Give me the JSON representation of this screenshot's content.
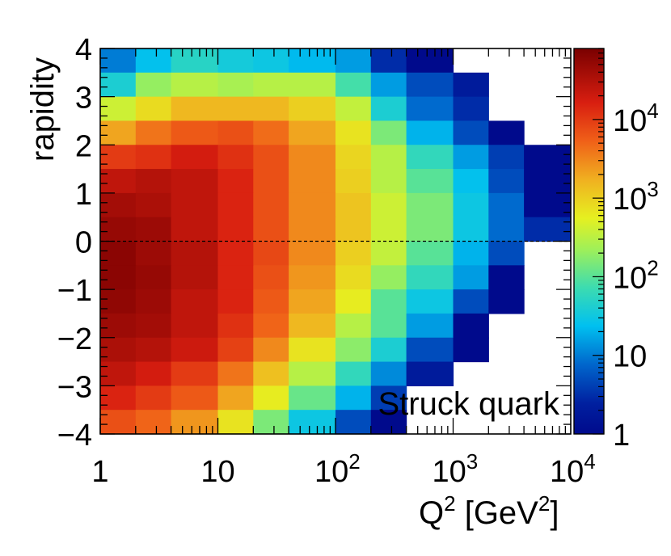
{
  "chart_data": {
    "type": "heatmap",
    "title": "",
    "annotation": "Struck quark",
    "xlabel": {
      "base": "Q",
      "sup1": "2",
      "mid": " [GeV",
      "sup2": "2",
      "end": "]"
    },
    "ylabel": "rapidity",
    "x_scale": "log",
    "xlim": [
      1,
      10000
    ],
    "ylim": [
      -4,
      4
    ],
    "z_scale": "log",
    "zlim": [
      1,
      80000
    ],
    "x_ticks": [
      {
        "value": 1,
        "label": "1"
      },
      {
        "value": 10,
        "label": "10"
      },
      {
        "value": 100,
        "base": "10",
        "exp": "2"
      },
      {
        "value": 1000,
        "base": "10",
        "exp": "3"
      },
      {
        "value": 10000,
        "base": "10",
        "exp": "4"
      }
    ],
    "y_ticks": [
      {
        "value": 4,
        "label": "4"
      },
      {
        "value": 3,
        "label": "3"
      },
      {
        "value": 2,
        "label": "2"
      },
      {
        "value": 1,
        "label": "1"
      },
      {
        "value": 0,
        "label": "0"
      },
      {
        "value": -1,
        "label": "−1"
      },
      {
        "value": -2,
        "label": "−2"
      },
      {
        "value": -3,
        "label": "−3"
      },
      {
        "value": -4,
        "label": "−4"
      }
    ],
    "z_ticks": [
      {
        "value": 10000,
        "base": "10",
        "exp": "4"
      },
      {
        "value": 1000,
        "base": "10",
        "exp": "3"
      },
      {
        "value": 100,
        "base": "10",
        "exp": "2"
      },
      {
        "value": 10,
        "label": "10"
      },
      {
        "value": 1,
        "label": "1"
      }
    ],
    "reference_line": {
      "y": 0,
      "style": "dashed"
    },
    "x_bins": [
      1,
      2,
      4,
      10,
      20,
      40,
      100,
      200,
      400,
      1000,
      2000,
      4000,
      10000
    ],
    "y_bins": [
      -4,
      -3.5,
      -3,
      -2.5,
      -2,
      -1.5,
      -1,
      -0.5,
      0,
      0.5,
      1,
      1.5,
      2,
      2.5,
      3,
      3.5,
      4
    ],
    "z_rows_from_top": [
      [
        10,
        25,
        50,
        35,
        30,
        22,
        15,
        3,
        1,
        null,
        null,
        null
      ],
      [
        40,
        200,
        300,
        250,
        300,
        300,
        80,
        15,
        5,
        2,
        null,
        null
      ],
      [
        400,
        800,
        1500,
        1500,
        1500,
        1000,
        350,
        40,
        8,
        3,
        null,
        null
      ],
      [
        2000,
        4000,
        6000,
        7000,
        4500,
        2000,
        700,
        150,
        20,
        5,
        1,
        null
      ],
      [
        10000,
        12000,
        18000,
        12000,
        7000,
        3000,
        900,
        300,
        60,
        15,
        4,
        1
      ],
      [
        25000,
        30000,
        25000,
        15000,
        7000,
        3000,
        1000,
        300,
        100,
        25,
        5,
        1
      ],
      [
        40000,
        35000,
        25000,
        15000,
        7000,
        3000,
        1200,
        400,
        150,
        30,
        8,
        1
      ],
      [
        50000,
        45000,
        25000,
        15000,
        7000,
        3000,
        1200,
        400,
        150,
        30,
        8,
        3
      ],
      [
        60000,
        45000,
        30000,
        15000,
        8000,
        3000,
        1000,
        350,
        100,
        20,
        5,
        null
      ],
      [
        60000,
        50000,
        30000,
        15000,
        7000,
        2500,
        800,
        200,
        60,
        15,
        1,
        null
      ],
      [
        55000,
        45000,
        25000,
        15000,
        6000,
        2000,
        600,
        100,
        30,
        5,
        1,
        null
      ],
      [
        45000,
        40000,
        25000,
        12000,
        5000,
        1500,
        300,
        100,
        15,
        1,
        null,
        null
      ],
      [
        35000,
        30000,
        20000,
        9000,
        3000,
        700,
        180,
        40,
        5,
        1,
        null,
        null
      ],
      [
        25000,
        18000,
        10000,
        4000,
        1300,
        300,
        60,
        12,
        2,
        null,
        null,
        null
      ],
      [
        15000,
        10000,
        6000,
        2000,
        600,
        120,
        20,
        4,
        null,
        null,
        null,
        null
      ],
      [
        7000,
        5000,
        2500,
        700,
        150,
        30,
        5,
        1,
        null,
        null,
        null,
        null
      ]
    ]
  }
}
